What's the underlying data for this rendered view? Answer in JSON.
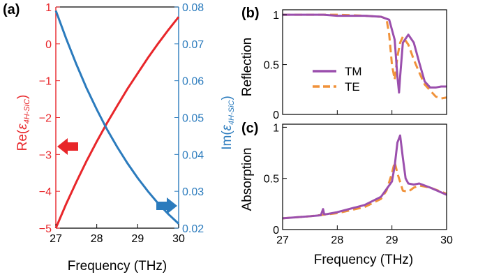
{
  "chart_data": [
    {
      "panel_label": "(a)",
      "type": "line",
      "xlabel": "Frequency (THz)",
      "xlim": [
        27,
        30
      ],
      "xticks": [
        "27",
        "28",
        "29",
        "30"
      ],
      "ylabel_left": "Re(ε4H-SiC)",
      "ylabel_left_parts": {
        "prefix": "Re(",
        "symbol": "ε",
        "subscript": "4H-SiC",
        "suffix": ")"
      },
      "ylim_left": [
        -5,
        1
      ],
      "yticks_left": [
        "−5",
        "−4",
        "−3",
        "−2",
        "−1",
        "0",
        "1"
      ],
      "ylabel_right": "Im(ε4H-SiC)",
      "ylabel_right_parts": {
        "prefix": "Im(",
        "symbol": "ε",
        "subscript": "4H-SiC",
        "suffix": ")"
      },
      "ylim_right": [
        0.02,
        0.08
      ],
      "yticks_right": [
        "0.02",
        "0.03",
        "0.04",
        "0.05",
        "0.06",
        "0.07",
        "0.08"
      ],
      "left_axis_color": "#e8262a",
      "right_axis_color": "#2b7bbd",
      "series": [
        {
          "axis": "left",
          "color": "#e8262a",
          "x": [
            27.0,
            27.25,
            27.5,
            27.75,
            28.0,
            28.25,
            28.5,
            28.75,
            29.0,
            29.25,
            29.5,
            29.75,
            30.0
          ],
          "values": [
            -5.0,
            -4.35,
            -3.75,
            -3.18,
            -2.65,
            -2.15,
            -1.68,
            -1.22,
            -0.8,
            -0.38,
            0.01,
            0.38,
            0.73
          ]
        },
        {
          "axis": "right",
          "color": "#2b7bbd",
          "x": [
            27.0,
            27.25,
            27.5,
            27.75,
            28.0,
            28.25,
            28.5,
            28.75,
            29.0,
            29.25,
            29.5,
            29.75,
            30.0
          ],
          "values": [
            0.079,
            0.0715,
            0.0645,
            0.058,
            0.0522,
            0.0468,
            0.042,
            0.0376,
            0.0336,
            0.03,
            0.0267,
            0.0238,
            0.0212
          ]
        }
      ]
    },
    {
      "panel_label": "(b)",
      "type": "line",
      "xlim": [
        27,
        30
      ],
      "ylabel": "Reflection",
      "ylim": [
        0,
        1.05
      ],
      "yticks": [
        "0",
        "0.5",
        "1"
      ],
      "legend": [
        "TM",
        "TE"
      ],
      "series": [
        {
          "name": "TM",
          "color": "#9b4fad",
          "dash": "solid",
          "x": [
            27.0,
            27.5,
            27.75,
            28.0,
            28.5,
            28.8,
            28.95,
            29.05,
            29.1,
            29.13,
            29.15,
            29.2,
            29.3,
            29.4,
            29.5,
            29.6,
            29.7,
            29.8,
            29.9,
            30.0
          ],
          "values": [
            1.0,
            1.0,
            1.0,
            0.99,
            0.99,
            0.98,
            0.95,
            0.75,
            0.38,
            0.22,
            0.38,
            0.72,
            0.8,
            0.72,
            0.52,
            0.33,
            0.27,
            0.27,
            0.28,
            0.28
          ]
        },
        {
          "name": "TE",
          "color": "#f0923a",
          "dash": "dashed",
          "x": [
            27.0,
            27.5,
            28.0,
            28.5,
            28.8,
            28.9,
            28.95,
            29.0,
            29.05,
            29.1,
            29.15,
            29.2,
            29.3,
            29.4,
            29.5,
            29.6,
            29.7,
            29.8,
            29.9,
            30.0
          ],
          "values": [
            1.0,
            1.0,
            1.0,
            0.99,
            0.98,
            0.96,
            0.8,
            0.5,
            0.35,
            0.58,
            0.72,
            0.78,
            0.7,
            0.55,
            0.42,
            0.3,
            0.24,
            0.18,
            0.16,
            0.17
          ]
        }
      ]
    },
    {
      "panel_label": "(c)",
      "type": "line",
      "xlabel": "Frequency (THz)",
      "xlim": [
        27,
        30
      ],
      "xticks": [
        "27",
        "28",
        "29",
        "30"
      ],
      "ylabel": "Absorption",
      "ylim": [
        0,
        1.03
      ],
      "yticks": [
        "0",
        "0.5",
        "1"
      ],
      "series": [
        {
          "name": "TM",
          "color": "#9b4fad",
          "dash": "solid",
          "x": [
            27.0,
            27.5,
            27.7,
            27.74,
            27.76,
            27.8,
            28.0,
            28.5,
            28.8,
            29.0,
            29.05,
            29.1,
            29.15,
            29.2,
            29.25,
            29.3,
            29.4,
            29.5,
            29.7,
            30.0
          ],
          "values": [
            0.11,
            0.13,
            0.14,
            0.2,
            0.15,
            0.15,
            0.17,
            0.24,
            0.32,
            0.47,
            0.62,
            0.85,
            0.92,
            0.7,
            0.5,
            0.45,
            0.44,
            0.45,
            0.41,
            0.34
          ]
        },
        {
          "name": "TE",
          "color": "#f0923a",
          "dash": "dashed",
          "x": [
            27.0,
            27.5,
            28.0,
            28.5,
            28.8,
            28.9,
            29.0,
            29.05,
            29.1,
            29.2,
            29.3,
            29.4,
            29.5,
            29.7,
            30.0
          ],
          "values": [
            0.11,
            0.13,
            0.16,
            0.22,
            0.3,
            0.38,
            0.55,
            0.66,
            0.55,
            0.38,
            0.37,
            0.41,
            0.43,
            0.41,
            0.35
          ]
        }
      ]
    }
  ]
}
